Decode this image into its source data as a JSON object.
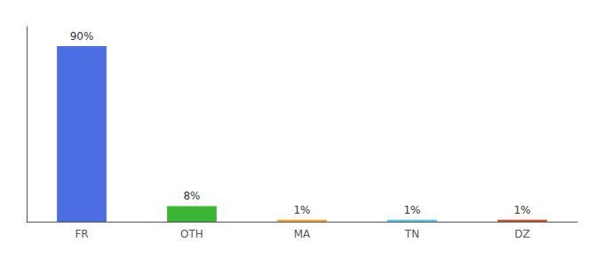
{
  "chart_data": {
    "type": "bar",
    "categories": [
      "FR",
      "OTH",
      "MA",
      "TN",
      "DZ"
    ],
    "values": [
      90,
      8,
      1,
      1,
      1
    ],
    "value_labels": [
      "90%",
      "8%",
      "1%",
      "1%",
      "1%"
    ],
    "colors": [
      "#4d6de3",
      "#3ab534",
      "#f0a830",
      "#5bc8e8",
      "#c85a30"
    ],
    "data_labels": true,
    "ylim": [
      0,
      100
    ],
    "grid": false,
    "tick_labels": "x"
  }
}
